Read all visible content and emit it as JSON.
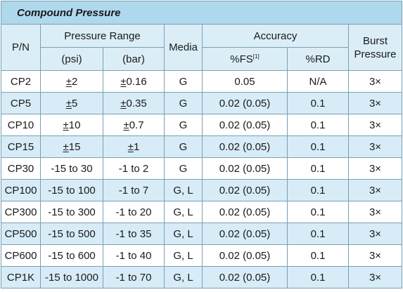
{
  "table": {
    "title": "Compound Pressure",
    "headers": {
      "pn": "P/N",
      "pressure_range": "Pressure Range",
      "psi": "(psi)",
      "bar": "(bar)",
      "media": "Media",
      "accuracy": "Accuracy",
      "fs": "%FS",
      "fs_note": "[1]",
      "rd": "%RD",
      "burst_line1": "Burst",
      "burst_line2": "Pressure"
    },
    "rows": [
      {
        "pn": "CP2",
        "psi": "2",
        "bar": "0.16",
        "psi_pm": true,
        "media": "G",
        "fs": "0.05",
        "rd": "N/A",
        "burst": "3×",
        "shaded": false
      },
      {
        "pn": "CP5",
        "psi": "5",
        "bar": "0.35",
        "psi_pm": true,
        "media": "G",
        "fs": "0.02 (0.05)",
        "rd": "0.1",
        "burst": "3×",
        "shaded": true
      },
      {
        "pn": "CP10",
        "psi": "10",
        "bar": "0.7",
        "psi_pm": true,
        "media": "G",
        "fs": "0.02 (0.05)",
        "rd": "0.1",
        "burst": "3×",
        "shaded": false
      },
      {
        "pn": "CP15",
        "psi": "15",
        "bar": "1",
        "psi_pm": true,
        "media": "G",
        "fs": "0.02 (0.05)",
        "rd": "0.1",
        "burst": "3×",
        "shaded": true
      },
      {
        "pn": "CP30",
        "psi": "-15 to 30",
        "bar": "-1 to 2",
        "psi_pm": false,
        "media": "G",
        "fs": "0.02 (0.05)",
        "rd": "0.1",
        "burst": "3×",
        "shaded": false
      },
      {
        "pn": "CP100",
        "psi": "-15 to 100",
        "bar": "-1 to 7",
        "psi_pm": false,
        "media": "G, L",
        "fs": "0.02 (0.05)",
        "rd": "0.1",
        "burst": "3×",
        "shaded": true
      },
      {
        "pn": "CP300",
        "psi": "-15 to 300",
        "bar": "-1 to 20",
        "psi_pm": false,
        "media": "G, L",
        "fs": "0.02 (0.05)",
        "rd": "0.1",
        "burst": "3×",
        "shaded": false
      },
      {
        "pn": "CP500",
        "psi": "-15 to 500",
        "bar": "-1 to 35",
        "psi_pm": false,
        "media": "G, L",
        "fs": "0.02 (0.05)",
        "rd": "0.1",
        "burst": "3×",
        "shaded": true
      },
      {
        "pn": "CP600",
        "psi": "-15 to 600",
        "bar": "-1 to 40",
        "psi_pm": false,
        "media": "G, L",
        "fs": "0.02 (0.05)",
        "rd": "0.1",
        "burst": "3×",
        "shaded": false
      },
      {
        "pn": "CP1K",
        "psi": "-15 to 1000",
        "bar": "-1 to 70",
        "psi_pm": false,
        "media": "G, L",
        "fs": "0.02 (0.05)",
        "rd": "0.1",
        "burst": "3×",
        "shaded": true
      }
    ],
    "pm_symbol": "±",
    "colors": {
      "title_bg": "#aed8ec",
      "header_bg": "#dbeef8",
      "shaded_row": "#d7ecf7",
      "border": "#7a9fb4"
    }
  }
}
